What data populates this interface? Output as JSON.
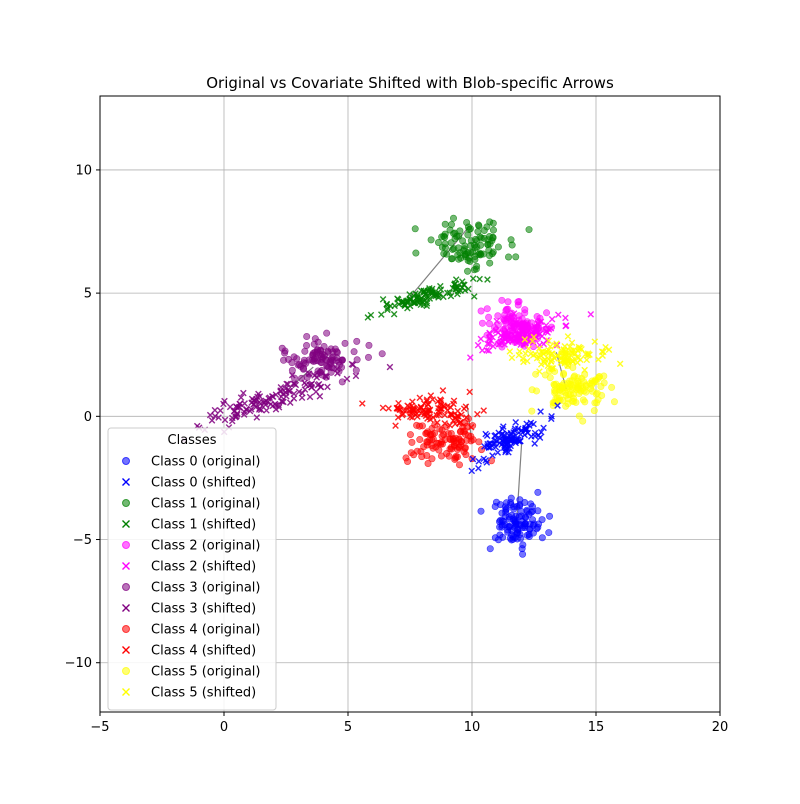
{
  "chart_data": {
    "type": "scatter",
    "title": "Original vs Covariate Shifted with Blob-specific Arrows",
    "xlabel": "",
    "ylabel": "",
    "xlim": [
      -5,
      20
    ],
    "ylim": [
      -12,
      13
    ],
    "xticks": [
      -5,
      0,
      5,
      10,
      15,
      20
    ],
    "yticks": [
      -10,
      -5,
      0,
      5,
      10
    ],
    "grid": true,
    "legend": {
      "title": "Classes",
      "placement": "lower-left"
    },
    "markers": {
      "original": "circle",
      "shifted": "x"
    },
    "classes": [
      {
        "class_id": 0,
        "color": "#0000ff",
        "original": {
          "name": "Class 0 (original)",
          "center": [
            11.8,
            -4.3
          ],
          "spread": [
            0.55,
            0.5
          ],
          "count": 110
        },
        "shifted": {
          "name": "Class 0 (shifted)",
          "center": [
            11.6,
            -0.9
          ],
          "spread": [
            0.75,
            0.25
          ],
          "tilt": 0.45,
          "count": 110
        },
        "arrow": {
          "from": [
            11.8,
            -4.3
          ],
          "to": [
            12.0,
            -1.1
          ]
        }
      },
      {
        "class_id": 1,
        "color": "#008000",
        "original": {
          "name": "Class 1 (original)",
          "center": [
            9.8,
            7.0
          ],
          "spread": [
            0.85,
            0.45
          ],
          "count": 100
        },
        "shifted": {
          "name": "Class 1 (shifted)",
          "center": [
            8.0,
            4.8
          ],
          "spread": [
            0.9,
            0.2
          ],
          "tilt": 0.25,
          "count": 110
        },
        "arrow": {
          "from": [
            9.8,
            7.6
          ],
          "to": [
            7.3,
            4.6
          ]
        }
      },
      {
        "class_id": 2,
        "color": "#ff00ff",
        "original": {
          "name": "Class 2 (original)",
          "center": [
            11.8,
            3.6
          ],
          "spread": [
            0.55,
            0.4
          ],
          "count": 120
        },
        "shifted": {
          "name": "Class 2 (shifted)",
          "center": [
            11.9,
            3.3
          ],
          "spread": [
            0.9,
            0.3
          ],
          "tilt": 0.3,
          "count": 110
        },
        "arrow": {
          "from": [
            12.3,
            3.9
          ],
          "to": [
            12.1,
            3.4
          ]
        }
      },
      {
        "class_id": 3,
        "color": "#800080",
        "original": {
          "name": "Class 3 (original)",
          "center": [
            3.9,
            2.3
          ],
          "spread": [
            0.85,
            0.45
          ],
          "count": 100
        },
        "shifted": {
          "name": "Class 3 (shifted)",
          "center": [
            2.0,
            0.7
          ],
          "spread": [
            1.5,
            0.25
          ],
          "tilt": 0.35,
          "count": 130
        },
        "arrow": {
          "from": [
            3.6,
            2.0
          ],
          "to": [
            2.7,
            1.2
          ]
        }
      },
      {
        "class_id": 4,
        "color": "#ff0000",
        "original": {
          "name": "Class 4 (original)",
          "center": [
            9.0,
            -1.0
          ],
          "spread": [
            0.75,
            0.4
          ],
          "count": 100
        },
        "shifted": {
          "name": "Class 4 (shifted)",
          "center": [
            8.4,
            0.2
          ],
          "spread": [
            0.9,
            0.3
          ],
          "count": 110
        },
        "arrow": {
          "from": [
            10.0,
            -1.1
          ],
          "to": [
            9.8,
            0.5
          ]
        }
      },
      {
        "class_id": 5,
        "color": "#ffff00",
        "original": {
          "name": "Class 5 (original)",
          "center": [
            14.0,
            1.1
          ],
          "spread": [
            0.7,
            0.45
          ],
          "count": 110
        },
        "shifted": {
          "name": "Class 5 (shifted)",
          "center": [
            13.6,
            2.5
          ],
          "spread": [
            0.9,
            0.3
          ],
          "count": 110
        },
        "arrow": {
          "from": [
            13.8,
            1.1
          ],
          "to": [
            13.4,
            2.6
          ]
        }
      }
    ]
  }
}
